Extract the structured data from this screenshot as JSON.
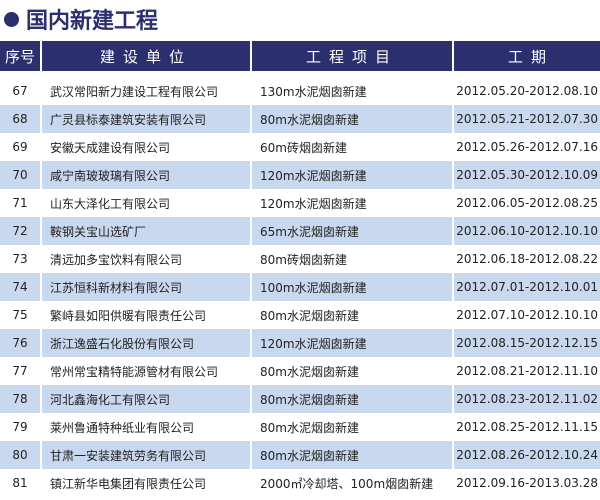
{
  "title": "国内新建工程",
  "headers": [
    "序号",
    "建设单位",
    "工程项目",
    "工期"
  ],
  "rows": [
    {
      "no": "67",
      "unit": "武汉常阳新力建设工程有限公司",
      "project": "130m水泥烟囱新建",
      "period": "2012.05.20-2012.08.10"
    },
    {
      "no": "68",
      "unit": "广灵县标泰建筑安装有限公司",
      "project": "80m水泥烟囱新建",
      "period": "2012.05.21-2012.07.30"
    },
    {
      "no": "69",
      "unit": "安徽天成建设有限公司",
      "project": "60m砖烟囱新建",
      "period": "2012.05.26-2012.07.16"
    },
    {
      "no": "70",
      "unit": "咸宁南玻玻璃有限公司",
      "project": "120m水泥烟囱新建",
      "period": "2012.05.30-2012.10.09"
    },
    {
      "no": "71",
      "unit": "山东大泽化工有限公司",
      "project": "120m水泥烟囱新建",
      "period": "2012.06.05-2012.08.25"
    },
    {
      "no": "72",
      "unit": "鞍钢关宝山选矿厂",
      "project": "65m水泥烟囱新建",
      "period": "2012.06.10-2012.10.10"
    },
    {
      "no": "73",
      "unit": "清远加多宝饮料有限公司",
      "project": "80m砖烟囱新建",
      "period": "2012.06.18-2012.08.22"
    },
    {
      "no": "74",
      "unit": "江苏恒科新材料有限公司",
      "project": "100m水泥烟囱新建",
      "period": "2012.07.01-2012.10.01"
    },
    {
      "no": "75",
      "unit": "繁峙县如阳供暖有限责任公司",
      "project": "80m水泥烟囱新建",
      "period": "2012.07.10-2012.10.10"
    },
    {
      "no": "76",
      "unit": "浙江逸盛石化股份有限公司",
      "project": "120m水泥烟囱新建",
      "period": "2012.08.15-2012.12.15"
    },
    {
      "no": "77",
      "unit": "常州常宝精特能源管材有限公司",
      "project": "80m水泥烟囱新建",
      "period": "2012.08.21-2012.11.10"
    },
    {
      "no": "78",
      "unit": "河北鑫海化工有限公司",
      "project": "80m水泥烟囱新建",
      "period": "2012.08.23-2012.11.02"
    },
    {
      "no": "79",
      "unit": "莱州鲁通特种纸业有限公司",
      "project": "80m水泥烟囱新建",
      "period": "2012.08.25-2012.11.15"
    },
    {
      "no": "80",
      "unit": "甘肃一安装建筑劳务有限公司",
      "project": "80m水泥烟囱新建",
      "period": "2012.08.26-2012.10.24"
    },
    {
      "no": "81",
      "unit": "镇江新华电集团有限责任公司",
      "project": "2000㎡冷却塔、100m烟囱新建",
      "period": "2012.09.16-2013.03.28"
    }
  ],
  "colors": {
    "header": "#2b2f6e",
    "stripe": "#c8d8ee"
  }
}
